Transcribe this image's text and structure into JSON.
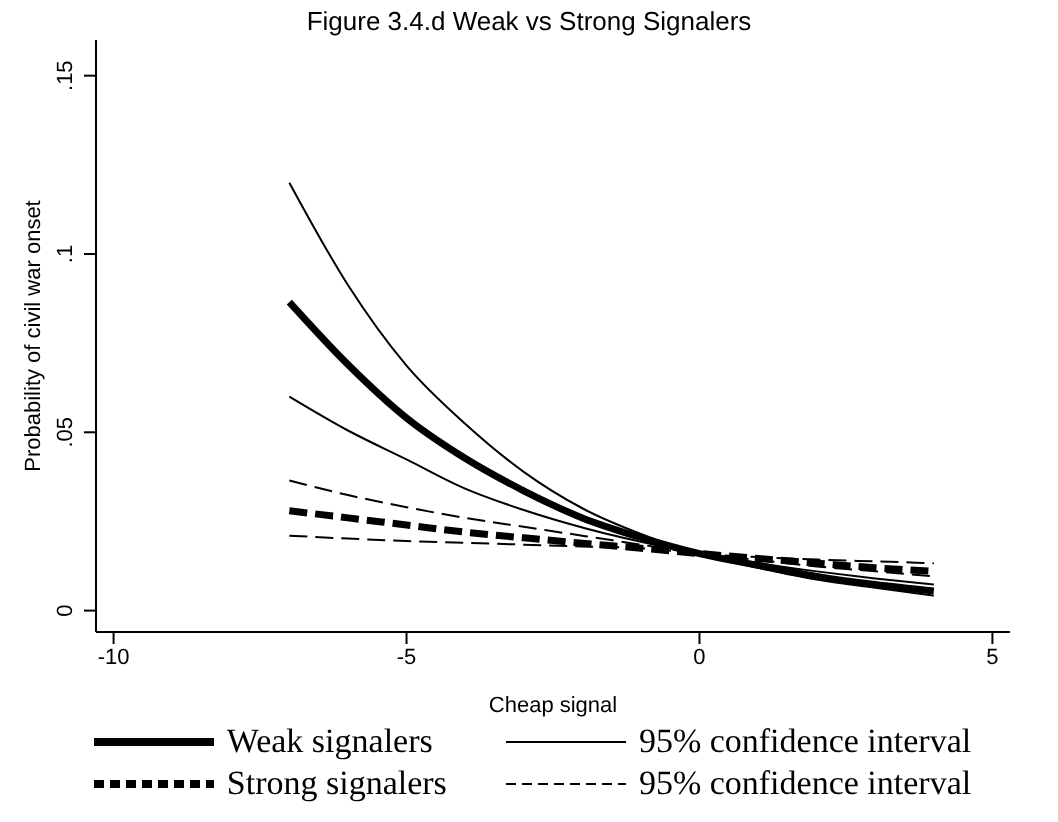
{
  "chart_data": {
    "type": "line",
    "title": "Figure 3.4.d    Weak vs Strong Signalers",
    "xlabel": "Cheap signal",
    "ylabel": "Probability of civil war onset",
    "x": [
      -7,
      -6,
      -5,
      -4,
      -3,
      -2,
      -1,
      0,
      1,
      2,
      3,
      4
    ],
    "series": [
      {
        "name": "Weak signalers",
        "color": "#000000",
        "line_style": "solid",
        "values": [
          0.0865,
          0.069,
          0.054,
          0.0427,
          0.0336,
          0.026,
          0.0205,
          0.016,
          0.0127,
          0.0096,
          0.0073,
          0.0055
        ]
      },
      {
        "name": "Strong signalers",
        "color": "#000000",
        "line_style": "dashed",
        "values": [
          0.028,
          0.026,
          0.024,
          0.022,
          0.0204,
          0.0189,
          0.0175,
          0.016,
          0.0146,
          0.0133,
          0.012,
          0.011
        ]
      },
      {
        "name": "95% confidence interval",
        "color": "#000000",
        "line_style": "solid",
        "values": [
          0.12,
          0.0913,
          0.0687,
          0.0524,
          0.0389,
          0.0287,
          0.0215,
          0.016,
          0.0133,
          0.011,
          0.009,
          0.0073
        ]
      },
      {
        "name": "95% confidence interval",
        "color": "#000000",
        "line_style": "dashed",
        "values": [
          0.0365,
          0.0324,
          0.029,
          0.026,
          0.0235,
          0.021,
          0.0185,
          0.016,
          0.015,
          0.0143,
          0.0138,
          0.0133
        ]
      },
      {
        "color": "#000000",
        "line_style": "solid",
        "values": [
          0.06,
          0.0505,
          0.0424,
          0.0342,
          0.0282,
          0.0233,
          0.0193,
          0.0158,
          0.012,
          0.0087,
          0.0064,
          0.0042
        ]
      },
      {
        "color": "#000000",
        "line_style": "dashed",
        "values": [
          0.021,
          0.0202,
          0.0195,
          0.019,
          0.0185,
          0.018,
          0.0175,
          0.016,
          0.0142,
          0.0124,
          0.011,
          0.0096
        ]
      }
    ],
    "xlim": [
      -10.3,
      5.3
    ],
    "xticks": [
      -10,
      -5,
      0,
      5
    ],
    "ylim": [
      -0.006,
      0.16
    ],
    "yticks": [
      {
        "value": 0,
        "label": "0"
      },
      {
        "value": 0.05,
        "label": ".05"
      },
      {
        "value": 0.1,
        "label": ".1"
      },
      {
        "value": 0.15,
        "label": ".15"
      }
    ],
    "grid": false,
    "legend": "bottom",
    "marker": "none"
  }
}
